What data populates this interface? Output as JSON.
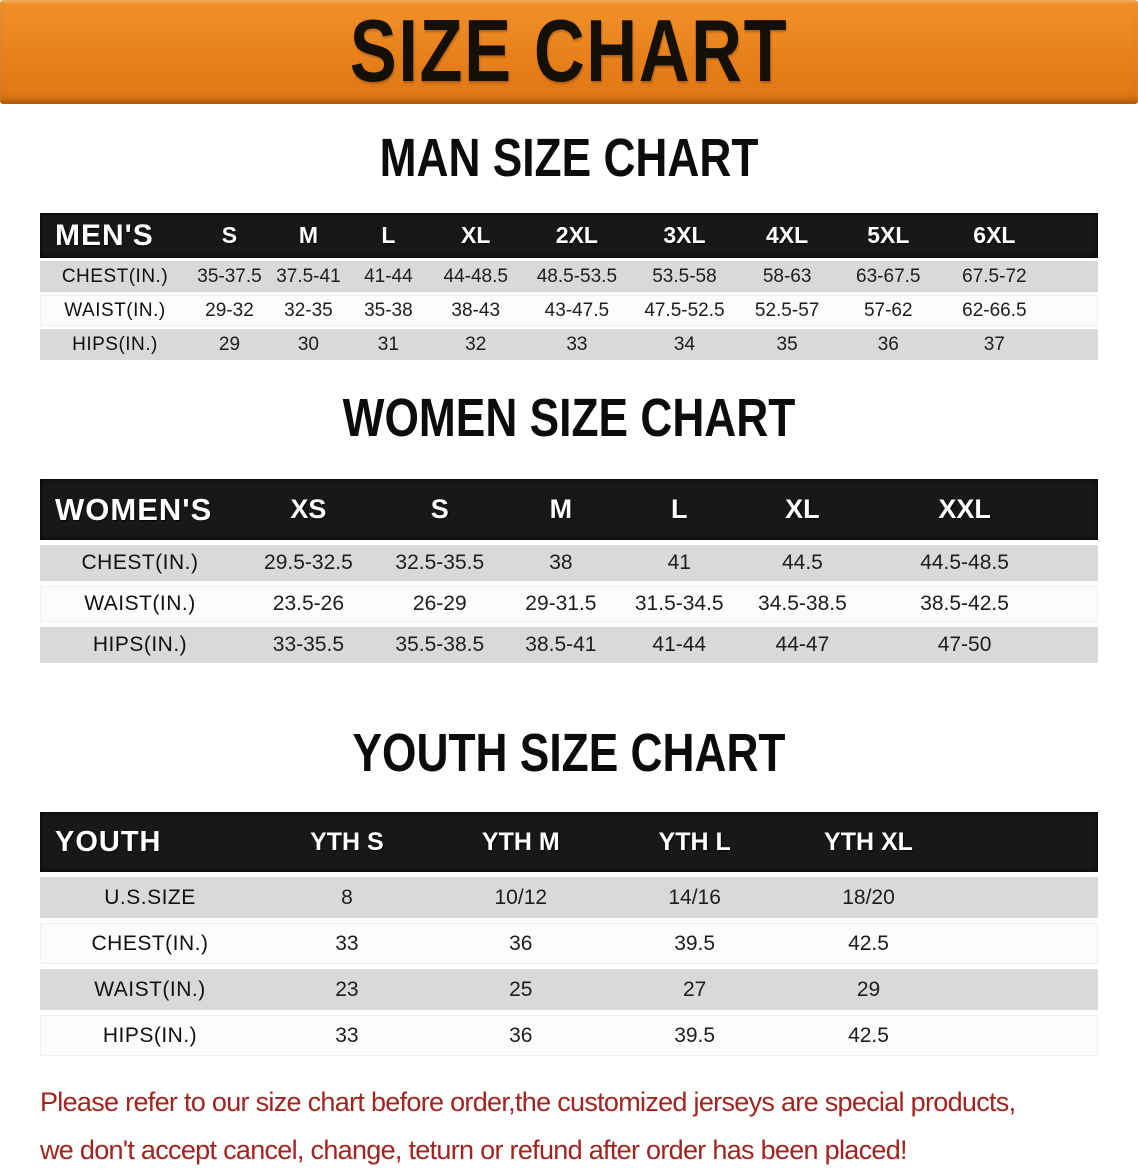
{
  "banner": {
    "title": "SIZE CHART"
  },
  "colors": {
    "banner_bg": "#e8811c",
    "table_header_bg": "#181818",
    "row_gray": "#d9d9d9",
    "row_white": "#fcfcfc",
    "disclaimer_red": "#a3231e"
  },
  "sections": [
    {
      "heading": "MAN SIZE CHART",
      "header_label": "MEN'S",
      "columns": [
        "S",
        "M",
        "L",
        "XL",
        "2XL",
        "3XL",
        "4XL",
        "5XL",
        "6XL"
      ],
      "rows": [
        {
          "label": "CHEST(IN.)",
          "values": [
            "35-37.5",
            "37.5-41",
            "41-44",
            "44-48.5",
            "48.5-53.5",
            "53.5-58",
            "58-63",
            "63-67.5",
            "67.5-72"
          ]
        },
        {
          "label": "WAIST(IN.)",
          "values": [
            "29-32",
            "32-35",
            "35-38",
            "38-43",
            "43-47.5",
            "47.5-52.5",
            "52.5-57",
            "57-62",
            "62-66.5"
          ]
        },
        {
          "label": "HIPS(IN.)",
          "values": [
            "29",
            "30",
            "31",
            "32",
            "33",
            "34",
            "35",
            "36",
            "37"
          ]
        }
      ]
    },
    {
      "heading": "WOMEN SIZE CHART",
      "header_label": "WOMEN'S",
      "columns": [
        "XS",
        "S",
        "M",
        "L",
        "XL",
        "XXL"
      ],
      "rows": [
        {
          "label": "CHEST(IN.)",
          "values": [
            "29.5-32.5",
            "32.5-35.5",
            "38",
            "41",
            "44.5",
            "44.5-48.5"
          ]
        },
        {
          "label": "WAIST(IN.)",
          "values": [
            "23.5-26",
            "26-29",
            "29-31.5",
            "31.5-34.5",
            "34.5-38.5",
            "38.5-42.5"
          ]
        },
        {
          "label": "HIPS(IN.)",
          "values": [
            "33-35.5",
            "35.5-38.5",
            "38.5-41",
            "41-44",
            "44-47",
            "47-50"
          ]
        }
      ]
    },
    {
      "heading": "YOUTH SIZE CHART",
      "header_label": "YOUTH",
      "columns": [
        "YTH S",
        "YTH M",
        "YTH L",
        "YTH XL"
      ],
      "rows": [
        {
          "label": "U.S.SIZE",
          "values": [
            "8",
            "10/12",
            "14/16",
            "18/20"
          ]
        },
        {
          "label": "CHEST(IN.)",
          "values": [
            "33",
            "36",
            "39.5",
            "42.5"
          ]
        },
        {
          "label": "WAIST(IN.)",
          "values": [
            "23",
            "25",
            "27",
            "29"
          ]
        },
        {
          "label": "HIPS(IN.)",
          "values": [
            "33",
            "36",
            "39.5",
            "42.5"
          ]
        }
      ]
    }
  ],
  "disclaimer": {
    "line1": "Please refer to our size chart before order,the customized jerseys are special products,",
    "line2": "we don't accept cancel, change, teturn or refund after order has been placed!"
  }
}
